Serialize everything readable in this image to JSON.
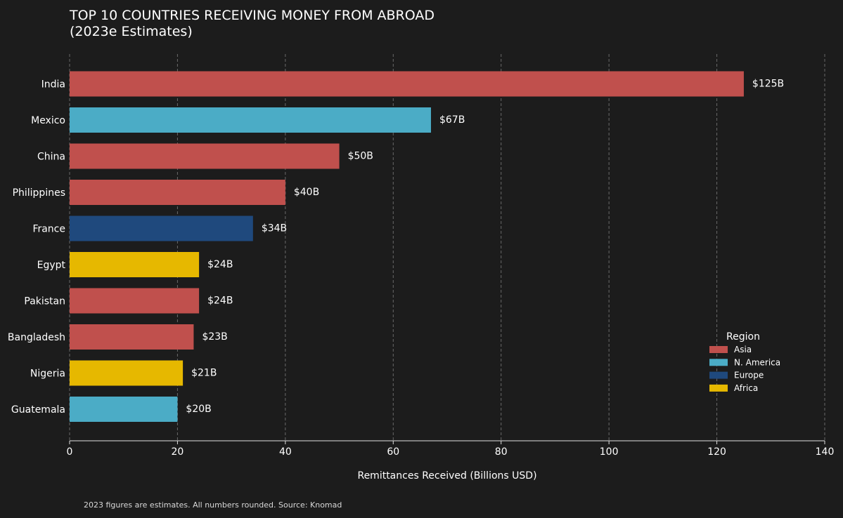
{
  "chart_data": {
    "type": "bar",
    "orientation": "horizontal",
    "title_lines": [
      "TOP 10 COUNTRIES RECEIVING MONEY FROM ABROAD",
      "(2023e Estimates)"
    ],
    "xlabel": "Remittances Received (Billions USD)",
    "ylabel": "",
    "xlim": [
      0,
      140
    ],
    "xticks": [
      0,
      20,
      40,
      60,
      80,
      100,
      120,
      140
    ],
    "grid": "vertical dashed",
    "categories": [
      "India",
      "Mexico",
      "China",
      "Philippines",
      "France",
      "Egypt",
      "Pakistan",
      "Bangladesh",
      "Nigeria",
      "Guatemala"
    ],
    "values": [
      125,
      67,
      50,
      40,
      34,
      24,
      24,
      23,
      21,
      20
    ],
    "value_labels": [
      "$125B",
      "$67B",
      "$50B",
      "$40B",
      "$34B",
      "$24B",
      "$24B",
      "$23B",
      "$21B",
      "$20B"
    ],
    "regions": [
      "Asia",
      "N. America",
      "Asia",
      "Asia",
      "Europe",
      "Africa",
      "Asia",
      "Asia",
      "Africa",
      "N. America"
    ],
    "legend": {
      "title": "Region",
      "placement": "bottom-right",
      "entries": [
        {
          "name": "Asia",
          "color": "#c0504d"
        },
        {
          "name": "N. America",
          "color": "#4bacc6"
        },
        {
          "name": "Europe",
          "color": "#1f497d"
        },
        {
          "name": "Africa",
          "color": "#e6b800"
        }
      ]
    },
    "footnote": "2023 figures are estimates. All numbers rounded. Source: Knomad"
  }
}
